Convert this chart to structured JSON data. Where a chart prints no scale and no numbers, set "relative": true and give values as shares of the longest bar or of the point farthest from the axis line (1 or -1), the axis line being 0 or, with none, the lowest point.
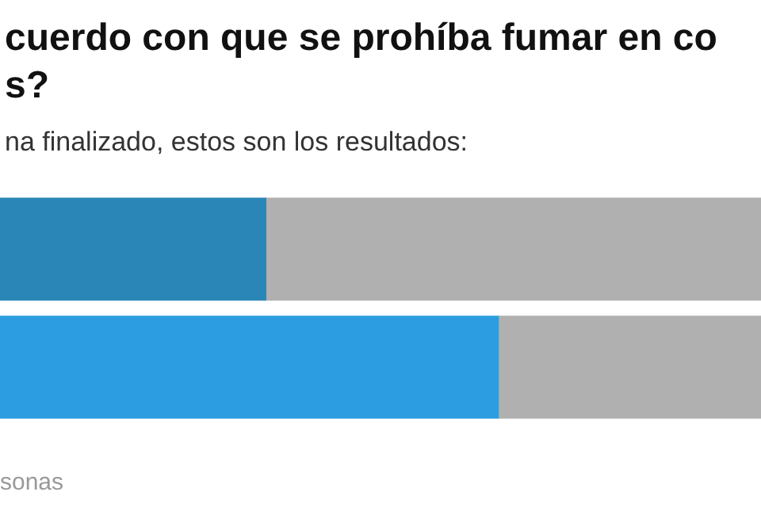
{
  "chart_data": {
    "type": "bar",
    "orientation": "horizontal",
    "stacked": true,
    "relative": true,
    "title": "cuerdo con que se prohíba fumar en co\ns?",
    "subtitle": "na finalizado, estos son los resultados:",
    "annotations": [
      "sonas"
    ],
    "categories": [
      null,
      null
    ],
    "series": [
      {
        "colors": [
          "#2a86b6",
          "#2b9de0"
        ],
        "values": [
          0.35,
          0.656
        ]
      },
      {
        "colors": [
          "#b0b0b0",
          "#b0b0b0"
        ],
        "values": [
          0.65,
          0.344
        ]
      }
    ]
  }
}
